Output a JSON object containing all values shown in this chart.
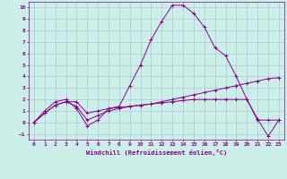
{
  "xlabel": "Windchill (Refroidissement éolien,°C)",
  "background_color": "#cceee8",
  "line_color": "#880088",
  "grid_color": "#aabbcc",
  "xlim": [
    -0.5,
    23.5
  ],
  "ylim": [
    -1.5,
    10.5
  ],
  "xticks": [
    0,
    1,
    2,
    3,
    4,
    5,
    6,
    7,
    8,
    9,
    10,
    11,
    12,
    13,
    14,
    15,
    16,
    17,
    18,
    19,
    20,
    21,
    22,
    23
  ],
  "yticks": [
    -1,
    0,
    1,
    2,
    3,
    4,
    5,
    6,
    7,
    8,
    9,
    10
  ],
  "line1_x": [
    0,
    1,
    2,
    3,
    4,
    5,
    6,
    7,
    8,
    9,
    10,
    11,
    12,
    13,
    14,
    15,
    16,
    17,
    18,
    19,
    20,
    21,
    22,
    23
  ],
  "line1_y": [
    0.0,
    1.0,
    1.8,
    2.0,
    1.2,
    -0.3,
    0.2,
    1.2,
    1.4,
    3.2,
    5.0,
    7.2,
    8.8,
    10.2,
    10.2,
    9.5,
    8.3,
    6.5,
    5.8,
    4.0,
    2.0,
    0.2,
    0.2,
    0.2
  ],
  "line2_x": [
    0,
    1,
    2,
    3,
    4,
    5,
    6,
    7,
    8,
    9,
    10,
    11,
    12,
    13,
    14,
    15,
    16,
    17,
    18,
    19,
    20,
    21,
    22,
    23
  ],
  "line2_y": [
    0.0,
    0.8,
    1.5,
    1.8,
    1.8,
    0.8,
    1.0,
    1.2,
    1.3,
    1.4,
    1.5,
    1.6,
    1.8,
    2.0,
    2.2,
    2.4,
    2.6,
    2.8,
    3.0,
    3.2,
    3.4,
    3.6,
    3.8,
    3.9
  ],
  "line3_x": [
    0,
    1,
    2,
    3,
    4,
    5,
    6,
    7,
    8,
    9,
    10,
    11,
    12,
    13,
    14,
    15,
    16,
    17,
    18,
    19,
    20,
    21,
    22,
    23
  ],
  "line3_y": [
    0.0,
    0.8,
    1.5,
    1.8,
    1.4,
    0.2,
    0.6,
    1.0,
    1.2,
    1.4,
    1.5,
    1.6,
    1.7,
    1.8,
    1.9,
    2.0,
    2.0,
    2.0,
    2.0,
    2.0,
    2.0,
    0.3,
    -1.2,
    0.2
  ]
}
